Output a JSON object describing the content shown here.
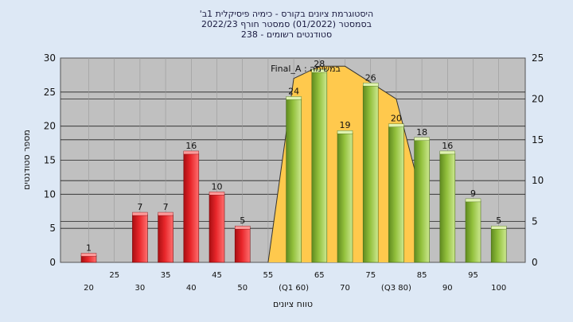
{
  "chart_data": {
    "type": "bar",
    "title_lines": [
      "'היסטוגרמת ציונים בקורס - כימיה פיסיקלית 1ב",
      "בסמסטר  (01/2022)  סמסטר חורף 2022/23",
      "סטודנטים רשומים - 238"
    ],
    "xlabel": "טווח ציונים",
    "ylabel": "מספר סטודנטים",
    "ylim": [
      0,
      30
    ],
    "y_ticks": [
      0,
      5,
      10,
      15,
      20,
      25,
      30
    ],
    "y2lim": [
      0,
      25
    ],
    "y2_ticks": [
      0,
      5,
      10,
      15,
      20,
      25
    ],
    "x_ticks_upper": [
      "25",
      "35",
      "45",
      "55",
      "65",
      "75",
      "85",
      "95"
    ],
    "x_ticks_lower": [
      "20",
      "30",
      "40",
      "50",
      "(Q1 60)",
      "70",
      "(Q3 80)",
      "90",
      "100"
    ],
    "bars": [
      {
        "x": 20,
        "value": 1,
        "label": "1",
        "color": "red"
      },
      {
        "x": 25,
        "value": 0,
        "label": "",
        "color": "red"
      },
      {
        "x": 30,
        "value": 7,
        "label": "7",
        "color": "red"
      },
      {
        "x": 35,
        "value": 7,
        "label": "7",
        "color": "red"
      },
      {
        "x": 40,
        "value": 16,
        "label": "16",
        "color": "red"
      },
      {
        "x": 45,
        "value": 10,
        "label": "10",
        "color": "red"
      },
      {
        "x": 50,
        "value": 5,
        "label": "5",
        "color": "red"
      },
      {
        "x": 55,
        "value": 0,
        "label": "",
        "color": "red"
      },
      {
        "x": 60,
        "value": 24,
        "label": "24",
        "color": "green"
      },
      {
        "x": 65,
        "value": 28,
        "label": "28",
        "color": "green"
      },
      {
        "x": 70,
        "value": 19,
        "label": "19",
        "color": "green"
      },
      {
        "x": 75,
        "value": 26,
        "label": "26",
        "color": "green"
      },
      {
        "x": 80,
        "value": 20,
        "label": "20",
        "color": "green"
      },
      {
        "x": 85,
        "value": 18,
        "label": "18",
        "color": "green"
      },
      {
        "x": 90,
        "value": 16,
        "label": "16",
        "color": "green"
      },
      {
        "x": 95,
        "value": 9,
        "label": "9",
        "color": "green"
      },
      {
        "x": 100,
        "value": 5,
        "label": "5",
        "color": "green"
      }
    ],
    "overlay": {
      "legend": "Final_A : במשימה",
      "x": [
        55,
        60,
        65,
        70,
        75,
        80,
        85
      ],
      "y2": [
        0,
        22.5,
        24,
        24,
        22,
        20,
        8
      ]
    },
    "colors": {
      "red": "#e8262a",
      "green": "#92c03c",
      "overlay_fill": "#ffc94d",
      "plot_bg": "#c0c0c0"
    }
  }
}
